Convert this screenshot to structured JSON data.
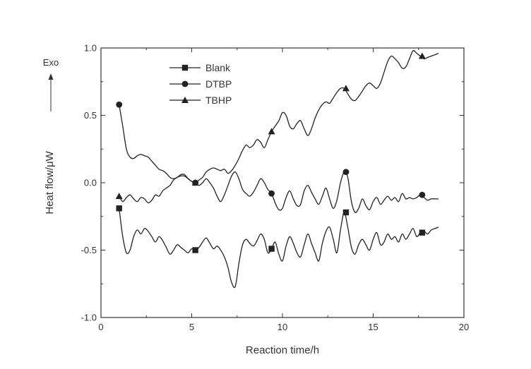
{
  "chart_data": {
    "type": "line",
    "xlabel": "Reaction time/h",
    "ylabel": "Heat flow/μW",
    "xlim": [
      0,
      20
    ],
    "ylim": [
      -1.0,
      1.0
    ],
    "xticks": [
      "0",
      "5",
      "10",
      "15",
      "20"
    ],
    "yticks": [
      "-1.0",
      "-0.5",
      "0.0",
      "0.5",
      "1.0"
    ],
    "grid": false,
    "legend_position": "top-left",
    "annotation": "Exo",
    "series": [
      {
        "name": "Blank",
        "marker": "square",
        "markers_at": [
          1.0,
          5.2,
          9.4,
          13.5,
          17.7
        ],
        "x": [
          1.0,
          1.2,
          1.4,
          1.6,
          1.8,
          2.0,
          2.2,
          2.4,
          2.6,
          2.8,
          3.0,
          3.2,
          3.4,
          3.6,
          3.8,
          4.0,
          4.2,
          4.4,
          4.6,
          4.8,
          5.0,
          5.2,
          5.4,
          5.6,
          5.8,
          6.0,
          6.2,
          6.4,
          6.6,
          6.8,
          7.0,
          7.2,
          7.4,
          7.6,
          7.8,
          8.0,
          8.2,
          8.4,
          8.6,
          8.8,
          9.0,
          9.2,
          9.4,
          9.6,
          9.8,
          10.0,
          10.2,
          10.4,
          10.6,
          10.8,
          11.0,
          11.2,
          11.4,
          11.6,
          11.8,
          12.0,
          12.2,
          12.4,
          12.6,
          12.8,
          13.0,
          13.2,
          13.4,
          13.6,
          13.8,
          14.0,
          14.2,
          14.4,
          14.6,
          14.8,
          15.0,
          15.2,
          15.4,
          15.6,
          15.8,
          16.0,
          16.2,
          16.4,
          16.6,
          16.8,
          17.0,
          17.2,
          17.4,
          17.6,
          17.8,
          18.0,
          18.2,
          18.4,
          18.6
        ],
        "y": [
          -0.19,
          -0.4,
          -0.52,
          -0.5,
          -0.4,
          -0.35,
          -0.38,
          -0.34,
          -0.36,
          -0.4,
          -0.44,
          -0.4,
          -0.43,
          -0.48,
          -0.53,
          -0.5,
          -0.46,
          -0.48,
          -0.5,
          -0.52,
          -0.49,
          -0.5,
          -0.48,
          -0.44,
          -0.41,
          -0.45,
          -0.49,
          -0.47,
          -0.5,
          -0.55,
          -0.63,
          -0.74,
          -0.77,
          -0.6,
          -0.46,
          -0.42,
          -0.45,
          -0.47,
          -0.43,
          -0.38,
          -0.42,
          -0.52,
          -0.49,
          -0.44,
          -0.53,
          -0.58,
          -0.47,
          -0.4,
          -0.45,
          -0.52,
          -0.55,
          -0.46,
          -0.38,
          -0.45,
          -0.52,
          -0.58,
          -0.45,
          -0.36,
          -0.33,
          -0.42,
          -0.52,
          -0.35,
          -0.22,
          -0.33,
          -0.48,
          -0.53,
          -0.46,
          -0.42,
          -0.46,
          -0.5,
          -0.42,
          -0.37,
          -0.46,
          -0.44,
          -0.38,
          -0.42,
          -0.4,
          -0.44,
          -0.38,
          -0.42,
          -0.38,
          -0.34,
          -0.4,
          -0.37,
          -0.36,
          -0.38,
          -0.35,
          -0.34,
          -0.33
        ]
      },
      {
        "name": "DTBP",
        "marker": "circle",
        "markers_at": [
          1.0,
          5.2,
          9.4,
          13.5,
          17.7
        ],
        "x": [
          1.0,
          1.2,
          1.4,
          1.6,
          1.8,
          2.0,
          2.2,
          2.4,
          2.6,
          2.8,
          3.0,
          3.2,
          3.4,
          3.6,
          3.8,
          4.0,
          4.2,
          4.4,
          4.6,
          4.8,
          5.0,
          5.2,
          5.4,
          5.6,
          5.8,
          6.0,
          6.2,
          6.4,
          6.6,
          6.8,
          7.0,
          7.2,
          7.4,
          7.6,
          7.8,
          8.0,
          8.2,
          8.4,
          8.6,
          8.8,
          9.0,
          9.2,
          9.4,
          9.6,
          9.8,
          10.0,
          10.2,
          10.4,
          10.6,
          10.8,
          11.0,
          11.2,
          11.4,
          11.6,
          11.8,
          12.0,
          12.2,
          12.4,
          12.6,
          12.8,
          13.0,
          13.2,
          13.4,
          13.6,
          13.8,
          14.0,
          14.2,
          14.4,
          14.6,
          14.8,
          15.0,
          15.2,
          15.4,
          15.6,
          15.8,
          16.0,
          16.2,
          16.4,
          16.6,
          16.8,
          17.0,
          17.2,
          17.4,
          17.6,
          17.8,
          18.0,
          18.2,
          18.4,
          18.6
        ],
        "y": [
          0.58,
          0.42,
          0.25,
          0.19,
          0.18,
          0.2,
          0.21,
          0.2,
          0.19,
          0.16,
          0.13,
          0.1,
          0.09,
          0.07,
          0.04,
          0.03,
          0.04,
          0.06,
          0.06,
          0.03,
          0.01,
          0.0,
          -0.02,
          0.0,
          0.03,
          0.0,
          -0.04,
          -0.1,
          -0.14,
          -0.09,
          -0.02,
          0.05,
          0.08,
          0.03,
          -0.05,
          -0.08,
          -0.1,
          -0.07,
          -0.02,
          0.03,
          0.0,
          -0.05,
          -0.08,
          -0.15,
          -0.2,
          -0.19,
          -0.11,
          -0.06,
          -0.12,
          -0.17,
          -0.16,
          -0.06,
          -0.02,
          -0.07,
          -0.12,
          -0.16,
          -0.1,
          -0.04,
          -0.12,
          -0.19,
          -0.13,
          0.0,
          0.08,
          0.04,
          -0.14,
          -0.22,
          -0.19,
          -0.12,
          -0.17,
          -0.2,
          -0.14,
          -0.11,
          -0.16,
          -0.13,
          -0.1,
          -0.13,
          -0.11,
          -0.14,
          -0.08,
          -0.12,
          -0.11,
          -0.12,
          -0.11,
          -0.09,
          -0.11,
          -0.13,
          -0.12,
          -0.12,
          -0.12
        ]
      },
      {
        "name": "TBHP",
        "marker": "triangle",
        "markers_at": [
          1.0,
          5.2,
          9.4,
          13.5,
          17.7
        ],
        "x": [
          1.0,
          1.2,
          1.4,
          1.6,
          1.8,
          2.0,
          2.2,
          2.4,
          2.6,
          2.8,
          3.0,
          3.2,
          3.4,
          3.6,
          3.8,
          4.0,
          4.2,
          4.4,
          4.6,
          4.8,
          5.0,
          5.2,
          5.4,
          5.6,
          5.8,
          6.0,
          6.2,
          6.4,
          6.6,
          6.8,
          7.0,
          7.2,
          7.4,
          7.6,
          7.8,
          8.0,
          8.2,
          8.4,
          8.6,
          8.8,
          9.0,
          9.2,
          9.4,
          9.6,
          9.8,
          10.0,
          10.2,
          10.4,
          10.6,
          10.8,
          11.0,
          11.2,
          11.4,
          11.6,
          11.8,
          12.0,
          12.2,
          12.4,
          12.6,
          12.8,
          13.0,
          13.2,
          13.4,
          13.6,
          13.8,
          14.0,
          14.2,
          14.4,
          14.6,
          14.8,
          15.0,
          15.2,
          15.4,
          15.6,
          15.8,
          16.0,
          16.2,
          16.4,
          16.6,
          16.8,
          17.0,
          17.2,
          17.4,
          17.6,
          17.8,
          18.0,
          18.2,
          18.4,
          18.6
        ],
        "y": [
          -0.1,
          -0.14,
          -0.11,
          -0.09,
          -0.12,
          -0.14,
          -0.11,
          -0.12,
          -0.15,
          -0.13,
          -0.09,
          -0.1,
          -0.06,
          -0.04,
          -0.02,
          0.02,
          0.04,
          0.05,
          0.05,
          0.03,
          0.01,
          0.0,
          0.02,
          0.04,
          0.08,
          0.1,
          0.11,
          0.1,
          0.09,
          0.1,
          0.07,
          0.09,
          0.13,
          0.18,
          0.24,
          0.28,
          0.26,
          0.28,
          0.32,
          0.3,
          0.26,
          0.32,
          0.38,
          0.42,
          0.46,
          0.52,
          0.5,
          0.42,
          0.4,
          0.44,
          0.46,
          0.4,
          0.35,
          0.4,
          0.48,
          0.54,
          0.58,
          0.6,
          0.59,
          0.63,
          0.67,
          0.7,
          0.7,
          0.66,
          0.62,
          0.61,
          0.64,
          0.68,
          0.72,
          0.74,
          0.72,
          0.7,
          0.74,
          0.82,
          0.9,
          0.94,
          0.92,
          0.89,
          0.85,
          0.86,
          0.92,
          0.98,
          0.96,
          0.94,
          0.92,
          0.93,
          0.94,
          0.95,
          0.96
        ]
      }
    ]
  }
}
